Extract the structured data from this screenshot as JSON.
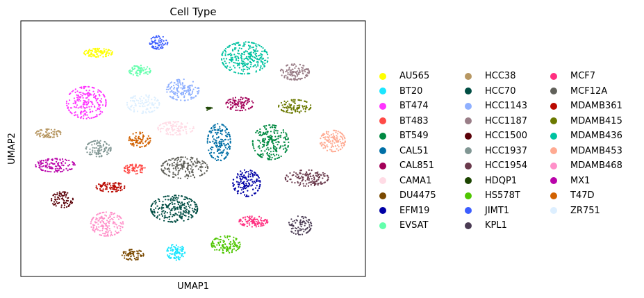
{
  "chart_data": {
    "type": "scatter",
    "title": "Cell Type",
    "xlabel": "UMAP1",
    "ylabel": "UMAP2",
    "xlim": [
      0,
      100
    ],
    "ylim": [
      0,
      100
    ],
    "grid": false,
    "ticks": false,
    "legend_placement": "right, outside plot, 3 columns",
    "clusters": [
      {
        "name": "AU565",
        "color": "#ffff00",
        "x": 22.5,
        "y": 87.5,
        "sx": 4.0,
        "sy": 1.6,
        "n": 90
      },
      {
        "name": "BT20",
        "color": "#1ce6ff",
        "x": 45.0,
        "y": 9.5,
        "sx": 2.5,
        "sy": 3.0,
        "n": 90
      },
      {
        "name": "BT474",
        "color": "#ff34ff",
        "x": 19.0,
        "y": 68.0,
        "sx": 5.5,
        "sy": 6.0,
        "n": 220
      },
      {
        "name": "BT483",
        "color": "#ff4a46",
        "x": 33.0,
        "y": 42.0,
        "sx": 3.0,
        "sy": 1.8,
        "n": 70
      },
      {
        "name": "BT549",
        "color": "#008941",
        "x": 72.5,
        "y": 52.5,
        "sx": 5.0,
        "sy": 6.5,
        "n": 230
      },
      {
        "name": "CAL51",
        "color": "#006fa6",
        "x": 57.5,
        "y": 52.5,
        "sx": 3.2,
        "sy": 7.0,
        "n": 180
      },
      {
        "name": "CAL851",
        "color": "#a30059",
        "x": 63.5,
        "y": 67.5,
        "sx": 3.8,
        "sy": 2.5,
        "n": 100
      },
      {
        "name": "CAMA1",
        "color": "#ffdbe5",
        "x": 45.0,
        "y": 58.0,
        "sx": 5.0,
        "sy": 2.5,
        "n": 110
      },
      {
        "name": "DU4475",
        "color": "#7a4900",
        "x": 32.5,
        "y": 8.5,
        "sx": 3.0,
        "sy": 2.0,
        "n": 70
      },
      {
        "name": "EFM19",
        "color": "#0000a6",
        "x": 65.5,
        "y": 36.5,
        "sx": 3.8,
        "sy": 5.0,
        "n": 150
      },
      {
        "name": "EVSAT",
        "color": "#63ffac",
        "x": 34.5,
        "y": 80.5,
        "sx": 3.0,
        "sy": 2.0,
        "n": 70
      },
      {
        "name": "HCC38",
        "color": "#b79762",
        "x": 8.0,
        "y": 56.0,
        "sx": 3.5,
        "sy": 1.6,
        "n": 70
      },
      {
        "name": "HCC70",
        "color": "#004d43",
        "x": 44.5,
        "y": 26.5,
        "sx": 6.5,
        "sy": 5.0,
        "n": 260
      },
      {
        "name": "HCC1143",
        "color": "#8fb0ff",
        "x": 47.0,
        "y": 73.0,
        "sx": 4.5,
        "sy": 4.0,
        "n": 150
      },
      {
        "name": "HCC1187",
        "color": "#997d87",
        "x": 79.5,
        "y": 80.0,
        "sx": 4.0,
        "sy": 3.0,
        "n": 120
      },
      {
        "name": "HCC1500",
        "color": "#5a0007",
        "x": 12.0,
        "y": 30.0,
        "sx": 3.0,
        "sy": 3.0,
        "n": 80
      },
      {
        "name": "HCC1937",
        "color": "#809693",
        "x": 22.5,
        "y": 50.0,
        "sx": 3.5,
        "sy": 3.0,
        "n": 100
      },
      {
        "name": "HCC1954",
        "color": "#6a3a4c",
        "x": 83.0,
        "y": 38.5,
        "sx": 6.0,
        "sy": 3.0,
        "n": 140
      },
      {
        "name": "HDQP1",
        "color": "#1b4400",
        "x": 54.5,
        "y": 65.5,
        "sx": 1.2,
        "sy": 0.6,
        "n": 14
      },
      {
        "name": "HS578T",
        "color": "#4fc601",
        "x": 59.5,
        "y": 12.5,
        "sx": 4.0,
        "sy": 3.2,
        "n": 130
      },
      {
        "name": "JIMT1",
        "color": "#3b5dff",
        "x": 40.0,
        "y": 91.5,
        "sx": 2.5,
        "sy": 2.5,
        "n": 70
      },
      {
        "name": "KPL1",
        "color": "#4a3b53",
        "x": 81.0,
        "y": 20.0,
        "sx": 3.2,
        "sy": 3.5,
        "n": 90
      },
      {
        "name": "MCF7",
        "color": "#ff2f80",
        "x": 67.5,
        "y": 21.5,
        "sx": 4.0,
        "sy": 2.0,
        "n": 100
      },
      {
        "name": "MCF12A",
        "color": "#61615a",
        "x": 47.5,
        "y": 42.5,
        "sx": 6.5,
        "sy": 4.0,
        "n": 200
      },
      {
        "name": "MDAMB361",
        "color": "#ba0900",
        "x": 26.0,
        "y": 35.0,
        "sx": 4.0,
        "sy": 1.8,
        "n": 90
      },
      {
        "name": "MDAMB415",
        "color": "#6b7900",
        "x": 79.5,
        "y": 66.5,
        "sx": 4.5,
        "sy": 2.5,
        "n": 110
      },
      {
        "name": "MDAMB436",
        "color": "#00c2a0",
        "x": 65.0,
        "y": 85.5,
        "sx": 6.5,
        "sy": 6.0,
        "n": 300
      },
      {
        "name": "MDAMB453",
        "color": "#ffaa92",
        "x": 90.5,
        "y": 53.0,
        "sx": 3.5,
        "sy": 4.0,
        "n": 130
      },
      {
        "name": "MDAMB468",
        "color": "#ff90c9",
        "x": 25.0,
        "y": 20.5,
        "sx": 4.5,
        "sy": 4.5,
        "n": 170
      },
      {
        "name": "MX1",
        "color": "#b903aa",
        "x": 10.0,
        "y": 43.5,
        "sx": 5.5,
        "sy": 2.5,
        "n": 120
      },
      {
        "name": "T47D",
        "color": "#d16100",
        "x": 34.5,
        "y": 53.5,
        "sx": 3.0,
        "sy": 2.8,
        "n": 80
      },
      {
        "name": "ZR751",
        "color": "#ddefff",
        "x": 35.5,
        "y": 67.5,
        "sx": 4.5,
        "sy": 3.5,
        "n": 110
      }
    ]
  }
}
